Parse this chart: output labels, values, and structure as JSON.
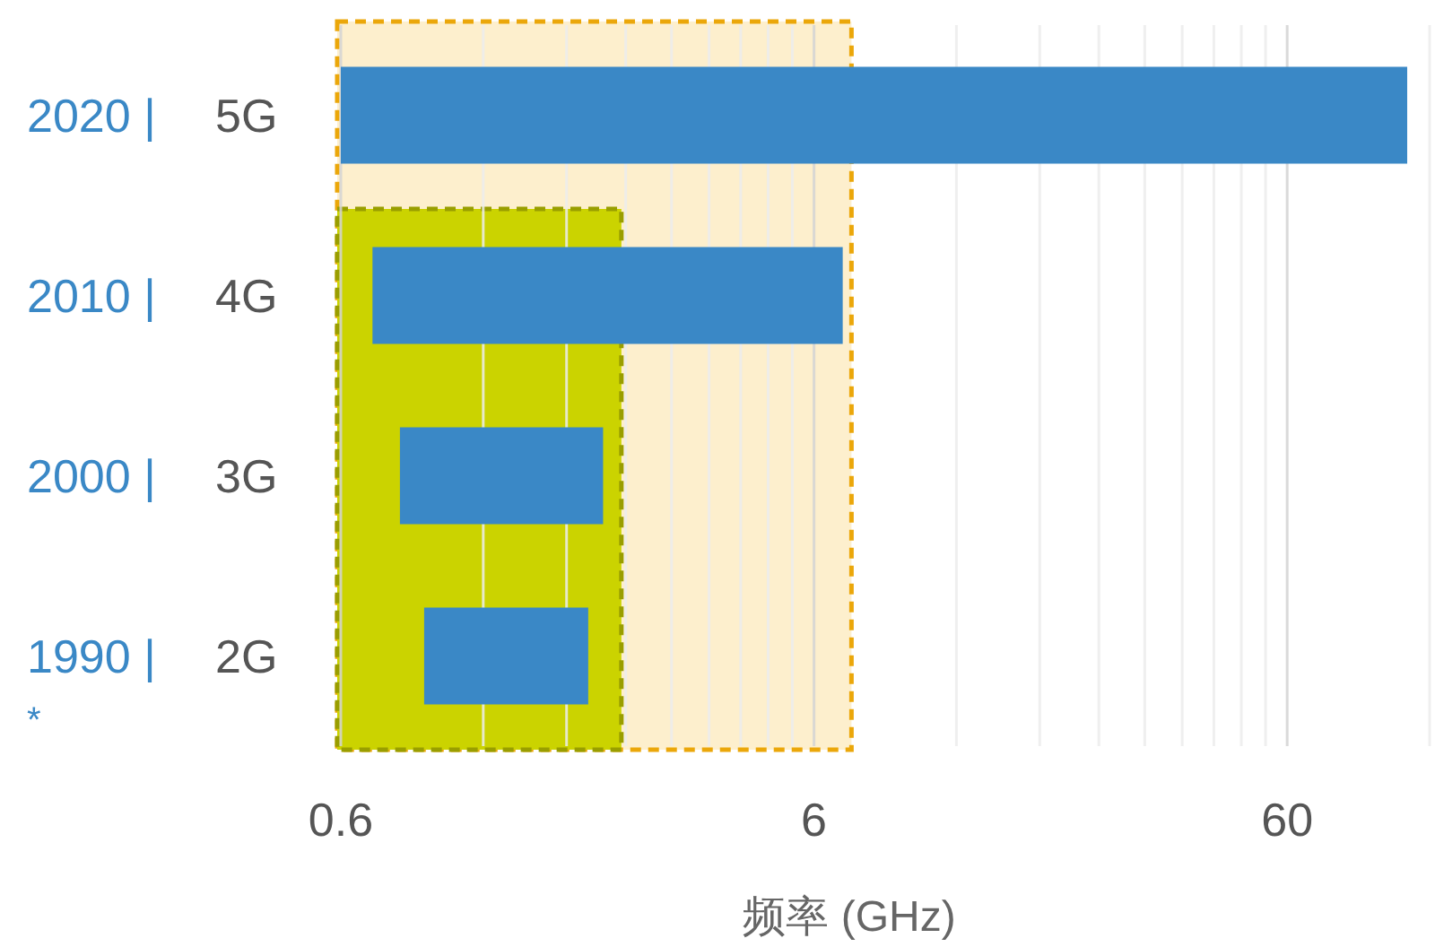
{
  "chart_data": {
    "type": "bar",
    "orientation": "horizontal",
    "xlabel": "频率 (GHz)",
    "categories": [
      "5G",
      "4G",
      "3G",
      "2G"
    ],
    "base": [
      0.6,
      0.7,
      0.8,
      0.9
    ],
    "values": [
      107,
      6.2,
      1.35,
      1.1
    ],
    "color": "#3a88c6",
    "log": "x",
    "xlim": [
      0.6,
      120
    ],
    "xticks": [
      0.6,
      6,
      60
    ],
    "grid": "x",
    "bands": [
      {
        "axis": "x",
        "from": 0.6,
        "to": 7.2,
        "color": "#fdefcd"
      },
      {
        "axis": "x",
        "from": 0.6,
        "to": 2.35,
        "color": "#cbd300"
      }
    ],
    "annotations": [
      "2020 |",
      "2010 |",
      "2000 |",
      "1990 |",
      "*"
    ]
  }
}
